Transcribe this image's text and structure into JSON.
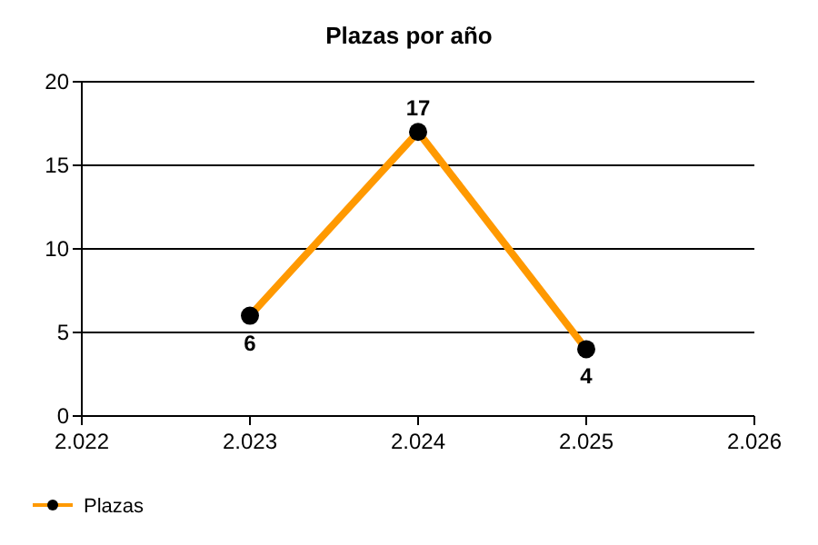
{
  "chart_data": {
    "type": "line",
    "title": "Plazas por año",
    "x": [
      2023,
      2024,
      2025
    ],
    "series": [
      {
        "name": "Plazas",
        "color": "#ff9900",
        "values": [
          6,
          17,
          4
        ]
      }
    ],
    "xlim": [
      2022,
      2026
    ],
    "xticks": [
      {
        "value": 2022,
        "label": "2.022"
      },
      {
        "value": 2023,
        "label": "2.023"
      },
      {
        "value": 2024,
        "label": "2.024"
      },
      {
        "value": 2025,
        "label": "2.025"
      },
      {
        "value": 2026,
        "label": "2.026"
      }
    ],
    "ylim": [
      0,
      20
    ],
    "yticks": [
      0,
      5,
      10,
      15,
      20
    ],
    "grid": "y",
    "legend": "bottom left",
    "marker": "circle",
    "line_style": "solid",
    "data_labels": true
  }
}
